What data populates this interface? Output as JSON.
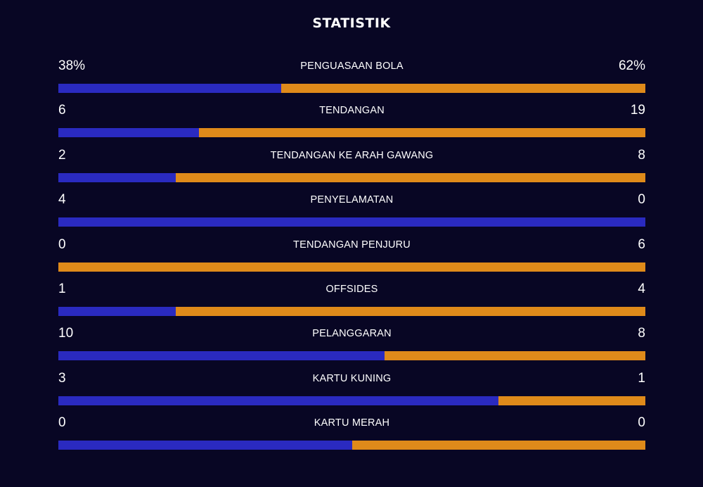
{
  "title": "STATISTIK",
  "colors": {
    "background": "#080624",
    "home": "#2a2ac0",
    "away": "#df8a1a"
  },
  "chart_data": {
    "type": "bar",
    "orientation": "horizontal-stacked-share",
    "title": "STATISTIK",
    "categories": [
      "PENGUASAAN BOLA",
      "TENDANGAN",
      "TENDANGAN KE ARAH GAWANG",
      "PENYELAMATAN",
      "TENDANGAN PENJURU",
      "OFFSIDES",
      "PELANGGARAN",
      "KARTU KUNING",
      "KARTU MERAH"
    ],
    "series": [
      {
        "values": [
          38,
          6,
          2,
          4,
          0,
          1,
          10,
          3,
          0
        ]
      },
      {
        "values": [
          62,
          19,
          8,
          0,
          6,
          4,
          8,
          1,
          0
        ]
      }
    ],
    "display_home": [
      "38%",
      "6",
      "2",
      "4",
      "0",
      "1",
      "10",
      "3",
      "0"
    ],
    "display_away": [
      "62%",
      "19",
      "8",
      "0",
      "6",
      "4",
      "8",
      "1",
      "0"
    ],
    "grid": false
  }
}
